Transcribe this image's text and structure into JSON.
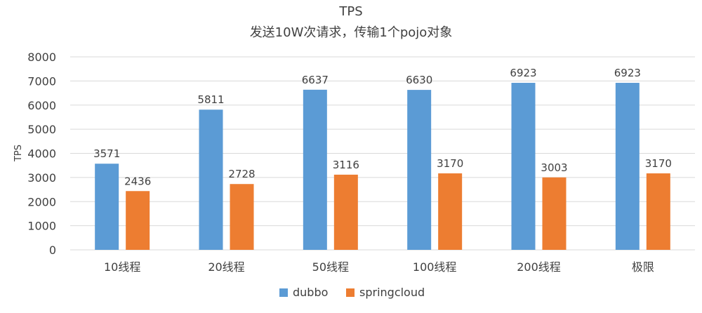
{
  "chart_data": {
    "type": "bar",
    "title": "TPS",
    "subtitle": "发送10W次请求，传输1个pojo对象",
    "ylabel": "TPS",
    "xlabel": "",
    "ylim": [
      0,
      8000
    ],
    "yticks": [
      0,
      1000,
      2000,
      3000,
      4000,
      5000,
      6000,
      7000,
      8000
    ],
    "grid": true,
    "legend_position": "bottom",
    "categories": [
      "10线程",
      "20线程",
      "50线程",
      "100线程",
      "200线程",
      "极限"
    ],
    "series": [
      {
        "name": "dubbo",
        "color": "#5B9BD5",
        "values": [
          3571,
          5811,
          6637,
          6630,
          6923,
          6923
        ]
      },
      {
        "name": "springcloud",
        "color": "#ED7D31",
        "values": [
          2436,
          2728,
          3116,
          3170,
          3003,
          3170
        ]
      }
    ]
  }
}
